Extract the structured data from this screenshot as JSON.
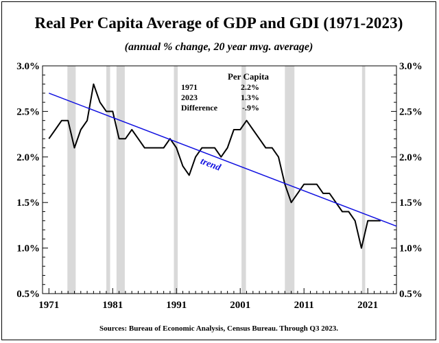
{
  "title": "Real Per Capita Average of GDP and GDI (1971-2023)",
  "subtitle": "(annual % change, 20 year mvg. average)",
  "source": "Sources: Bureau of Economic Analysis, Census Bureau. Through Q3 2023.",
  "chart_data": {
    "type": "line",
    "xlim": [
      1970,
      2025.5
    ],
    "ylim": [
      0.5,
      3.0
    ],
    "x_ticks": [
      1971,
      1981,
      1991,
      2001,
      2011,
      2021
    ],
    "x_tick_labels": [
      "1971",
      "1981",
      "1991",
      "2001",
      "2011",
      "2021"
    ],
    "y_ticks": [
      0.5,
      1.0,
      1.5,
      2.0,
      2.5,
      3.0
    ],
    "y_tick_labels": [
      "0.5%",
      "1.0%",
      "1.5%",
      "2.0%",
      "2.5%",
      "3.0%"
    ],
    "grid": false,
    "recessions": [
      [
        1973.9,
        1975.2
      ],
      [
        1980.0,
        1980.6
      ],
      [
        1981.6,
        1982.9
      ],
      [
        1990.6,
        1991.2
      ],
      [
        2001.2,
        2001.9
      ],
      [
        2008.0,
        2009.5
      ],
      [
        2020.1,
        2020.6
      ]
    ],
    "series": [
      {
        "name": "",
        "color": "#000000",
        "x": [
          1971,
          1972,
          1973,
          1974,
          1975,
          1976,
          1977,
          1978,
          1979,
          1980,
          1981,
          1982,
          1983,
          1984,
          1985,
          1986,
          1987,
          1988,
          1989,
          1990,
          1991,
          1992,
          1993,
          1994,
          1995,
          1996,
          1997,
          1998,
          1999,
          2000,
          2001,
          2002,
          2003,
          2004,
          2005,
          2006,
          2007,
          2008,
          2009,
          2010,
          2011,
          2012,
          2013,
          2014,
          2015,
          2016,
          2017,
          2018,
          2019,
          2020,
          2021,
          2022,
          2023
        ],
        "y": [
          2.2,
          2.3,
          2.4,
          2.4,
          2.1,
          2.3,
          2.4,
          2.8,
          2.6,
          2.5,
          2.5,
          2.2,
          2.2,
          2.3,
          2.2,
          2.1,
          2.1,
          2.1,
          2.1,
          2.2,
          2.1,
          1.9,
          1.8,
          2.0,
          2.1,
          2.1,
          2.1,
          2.0,
          2.1,
          2.3,
          2.3,
          2.4,
          2.3,
          2.2,
          2.1,
          2.1,
          2.0,
          1.7,
          1.5,
          1.6,
          1.7,
          1.7,
          1.7,
          1.6,
          1.6,
          1.5,
          1.4,
          1.4,
          1.3,
          1.0,
          1.3,
          1.3,
          1.3
        ]
      },
      {
        "name": "trend",
        "color": "#1010e0",
        "x": [
          1971,
          2025.5
        ],
        "y": [
          2.7,
          1.24
        ]
      }
    ],
    "trend_label": "trend",
    "inset_table": {
      "header": "Per Capita",
      "rows": [
        {
          "label": "1971",
          "value": "2.2%"
        },
        {
          "label": "2023",
          "value": "1.3%"
        },
        {
          "label": "Difference",
          "value": "-.9%"
        }
      ]
    }
  }
}
